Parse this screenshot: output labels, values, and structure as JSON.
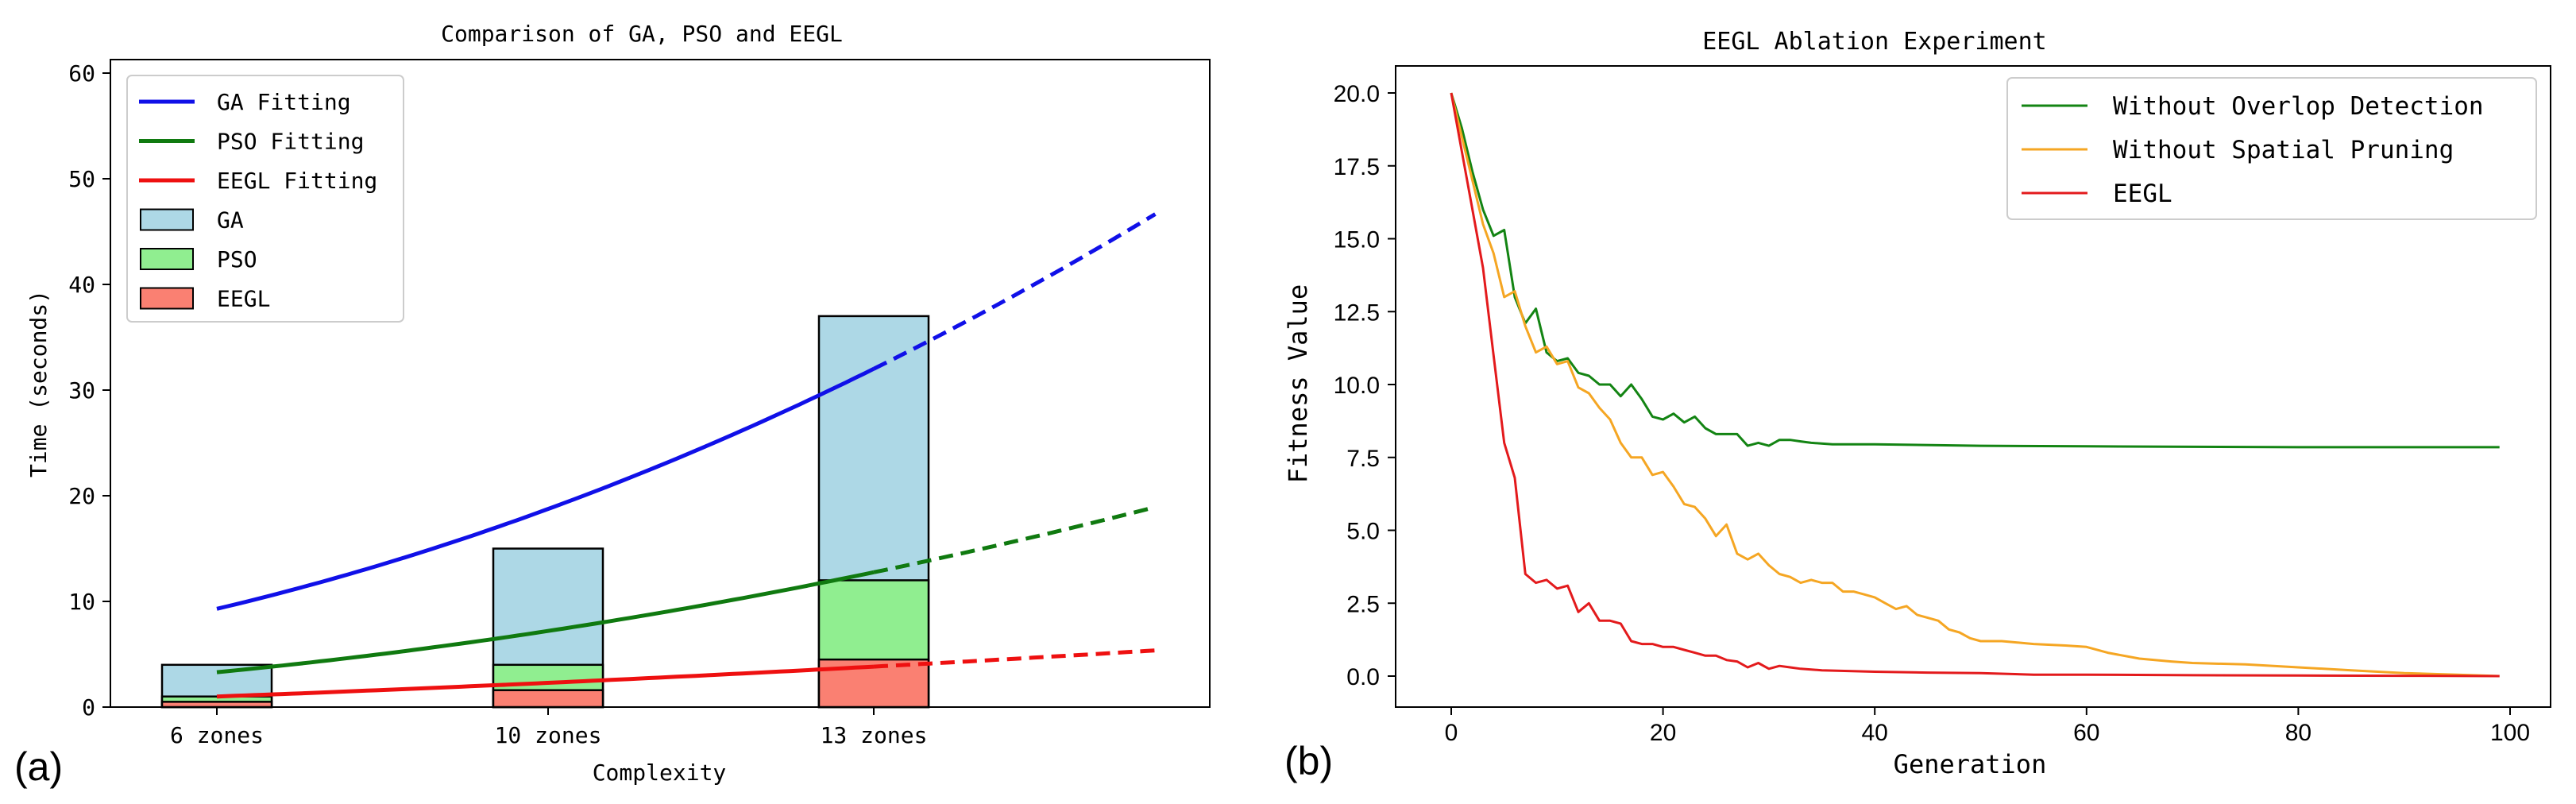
{
  "chart_data": [
    {
      "type": "bar",
      "panel_label": "(a)",
      "title": "Comparison of GA, PSO and EEGL",
      "xlabel": "Complexity",
      "ylabel": "Time (seconds)",
      "categories": [
        "6 zones",
        "10 zones",
        "13 zones"
      ],
      "ylim": [
        0,
        60
      ],
      "yticks": [
        "0",
        "10",
        "20",
        "30",
        "40",
        "50",
        "60"
      ],
      "grid": false,
      "legend_position": "top-left",
      "series": [
        {
          "name": "GA",
          "color": "#ADD8E6",
          "values": [
            4.0,
            15.0,
            37.0
          ]
        },
        {
          "name": "PSO",
          "color": "#90EE90",
          "values": [
            1.0,
            4.0,
            12.0
          ]
        },
        {
          "name": "EEGL",
          "color": "#FA8072",
          "values": [
            0.5,
            1.6,
            4.5
          ]
        }
      ],
      "fit_lines": [
        {
          "name": "GA Fitting",
          "color": "#1010e8",
          "coef": [
            0.1636,
            0.1364,
            2.5909
          ],
          "x_solid_end": 13,
          "x_end": 16
        },
        {
          "name": "PSO Fitting",
          "color": "#107a10",
          "coef": [
            0.0705,
            0.0114,
            0.6932
          ],
          "x_solid_end": 13,
          "x_end": 16
        },
        {
          "name": "EEGL Fitting",
          "color": "#ee1010",
          "coef": [
            0.0107,
            0.2011,
            -0.5932
          ],
          "x_solid_end": 13,
          "x_end": 16
        }
      ]
    },
    {
      "type": "line",
      "panel_label": "(b)",
      "title": "EEGL Ablation Experiment",
      "xlabel": "Generation",
      "ylabel": "Fitness Value",
      "xlim": [
        -5,
        104
      ],
      "ylim": [
        -1,
        21
      ],
      "xticks": [
        "0",
        "20",
        "40",
        "60",
        "80",
        "100"
      ],
      "yticks": [
        "0.0",
        "2.5",
        "5.0",
        "7.5",
        "10.0",
        "12.5",
        "15.0",
        "17.5",
        "20.0"
      ],
      "grid": false,
      "legend_position": "top-right",
      "series": [
        {
          "name": "Without Overlop Detection",
          "color": "#138413",
          "points": [
            [
              0,
              20
            ],
            [
              1,
              18.8
            ],
            [
              2,
              17.3
            ],
            [
              3,
              16.0
            ],
            [
              4,
              15.1
            ],
            [
              5,
              15.3
            ],
            [
              6,
              13.0
            ],
            [
              7,
              12.1
            ],
            [
              8,
              12.6
            ],
            [
              9,
              11.1
            ],
            [
              10,
              10.8
            ],
            [
              11,
              10.9
            ],
            [
              12,
              10.4
            ],
            [
              13,
              10.3
            ],
            [
              14,
              10.0
            ],
            [
              15,
              10.0
            ],
            [
              16,
              9.6
            ],
            [
              17,
              10.0
            ],
            [
              18,
              9.5
            ],
            [
              19,
              8.9
            ],
            [
              20,
              8.8
            ],
            [
              21,
              9.0
            ],
            [
              22,
              8.7
            ],
            [
              23,
              8.9
            ],
            [
              24,
              8.5
            ],
            [
              25,
              8.3
            ],
            [
              26,
              8.3
            ],
            [
              27,
              8.3
            ],
            [
              28,
              7.9
            ],
            [
              29,
              8.0
            ],
            [
              30,
              7.9
            ],
            [
              31,
              8.1
            ],
            [
              32,
              8.1
            ],
            [
              33,
              8.05
            ],
            [
              34,
              8.0
            ],
            [
              36,
              7.95
            ],
            [
              40,
              7.95
            ],
            [
              50,
              7.9
            ],
            [
              60,
              7.88
            ],
            [
              80,
              7.85
            ],
            [
              99,
              7.85
            ]
          ]
        },
        {
          "name": "Without Spatial Pruning",
          "color": "#f5a623",
          "points": [
            [
              0,
              20
            ],
            [
              1,
              18.5
            ],
            [
              2,
              17.0
            ],
            [
              3,
              15.5
            ],
            [
              4,
              14.5
            ],
            [
              5,
              13.0
            ],
            [
              6,
              13.2
            ],
            [
              7,
              12.0
            ],
            [
              8,
              11.1
            ],
            [
              9,
              11.3
            ],
            [
              10,
              10.7
            ],
            [
              11,
              10.8
            ],
            [
              12,
              9.9
            ],
            [
              13,
              9.7
            ],
            [
              14,
              9.2
            ],
            [
              15,
              8.8
            ],
            [
              16,
              8.0
            ],
            [
              17,
              7.5
            ],
            [
              18,
              7.5
            ],
            [
              19,
              6.9
            ],
            [
              20,
              7.0
            ],
            [
              21,
              6.5
            ],
            [
              22,
              5.9
            ],
            [
              23,
              5.8
            ],
            [
              24,
              5.4
            ],
            [
              25,
              4.8
            ],
            [
              26,
              5.2
            ],
            [
              27,
              4.2
            ],
            [
              28,
              4.0
            ],
            [
              29,
              4.2
            ],
            [
              30,
              3.8
            ],
            [
              31,
              3.5
            ],
            [
              32,
              3.4
            ],
            [
              33,
              3.2
            ],
            [
              34,
              3.3
            ],
            [
              35,
              3.2
            ],
            [
              36,
              3.2
            ],
            [
              37,
              2.9
            ],
            [
              38,
              2.9
            ],
            [
              39,
              2.8
            ],
            [
              40,
              2.7
            ],
            [
              41,
              2.5
            ],
            [
              42,
              2.3
            ],
            [
              43,
              2.4
            ],
            [
              44,
              2.1
            ],
            [
              45,
              2.0
            ],
            [
              46,
              1.9
            ],
            [
              47,
              1.6
            ],
            [
              48,
              1.5
            ],
            [
              49,
              1.3
            ],
            [
              50,
              1.2
            ],
            [
              52,
              1.2
            ],
            [
              55,
              1.1
            ],
            [
              58,
              1.05
            ],
            [
              60,
              1.0
            ],
            [
              62,
              0.8
            ],
            [
              65,
              0.6
            ],
            [
              68,
              0.5
            ],
            [
              70,
              0.45
            ],
            [
              75,
              0.4
            ],
            [
              80,
              0.3
            ],
            [
              85,
              0.2
            ],
            [
              90,
              0.1
            ],
            [
              95,
              0.05
            ],
            [
              99,
              0.0
            ]
          ]
        },
        {
          "name": "EEGL",
          "color": "#e31a1c",
          "points": [
            [
              0,
              20
            ],
            [
              1,
              18.0
            ],
            [
              2,
              16.0
            ],
            [
              3,
              14.0
            ],
            [
              4,
              11.0
            ],
            [
              5,
              8.0
            ],
            [
              6,
              6.8
            ],
            [
              7,
              3.5
            ],
            [
              8,
              3.2
            ],
            [
              9,
              3.3
            ],
            [
              10,
              3.0
            ],
            [
              11,
              3.1
            ],
            [
              12,
              2.2
            ],
            [
              13,
              2.5
            ],
            [
              14,
              1.9
            ],
            [
              15,
              1.9
            ],
            [
              16,
              1.8
            ],
            [
              17,
              1.2
            ],
            [
              18,
              1.1
            ],
            [
              19,
              1.1
            ],
            [
              20,
              1.0
            ],
            [
              21,
              1.0
            ],
            [
              22,
              0.9
            ],
            [
              23,
              0.8
            ],
            [
              24,
              0.7
            ],
            [
              25,
              0.7
            ],
            [
              26,
              0.55
            ],
            [
              27,
              0.5
            ],
            [
              28,
              0.3
            ],
            [
              29,
              0.45
            ],
            [
              30,
              0.25
            ],
            [
              31,
              0.35
            ],
            [
              32,
              0.3
            ],
            [
              33,
              0.25
            ],
            [
              35,
              0.2
            ],
            [
              40,
              0.15
            ],
            [
              45,
              0.12
            ],
            [
              50,
              0.1
            ],
            [
              55,
              0.05
            ],
            [
              60,
              0.05
            ],
            [
              70,
              0.03
            ],
            [
              80,
              0.02
            ],
            [
              90,
              0.01
            ],
            [
              99,
              0.0
            ]
          ]
        }
      ]
    }
  ]
}
